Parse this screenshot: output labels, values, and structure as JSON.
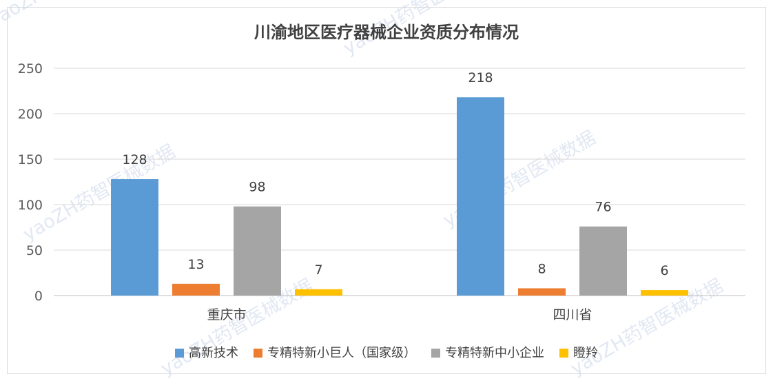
{
  "chart_data": {
    "type": "bar",
    "title": "川渝地区医疗器械企业资质分布情况",
    "categories": [
      "重庆市",
      "四川省"
    ],
    "series": [
      {
        "name": "高新技术",
        "color": "#5b9bd5",
        "values": [
          128,
          218
        ]
      },
      {
        "name": "专精特新小巨人（国家级）",
        "color": "#ed7d31",
        "values": [
          13,
          8
        ]
      },
      {
        "name": "专精特新中小企业",
        "color": "#a5a5a5",
        "values": [
          98,
          76
        ]
      },
      {
        "name": "瞪羚",
        "color": "#ffc000",
        "values": [
          7,
          6
        ]
      }
    ],
    "ylim": [
      0,
      250
    ],
    "yticks": [
      0,
      50,
      100,
      150,
      200,
      250
    ],
    "grid": true,
    "legend": "bottom"
  },
  "watermark": {
    "text": "yaoZH药智医械数据"
  }
}
